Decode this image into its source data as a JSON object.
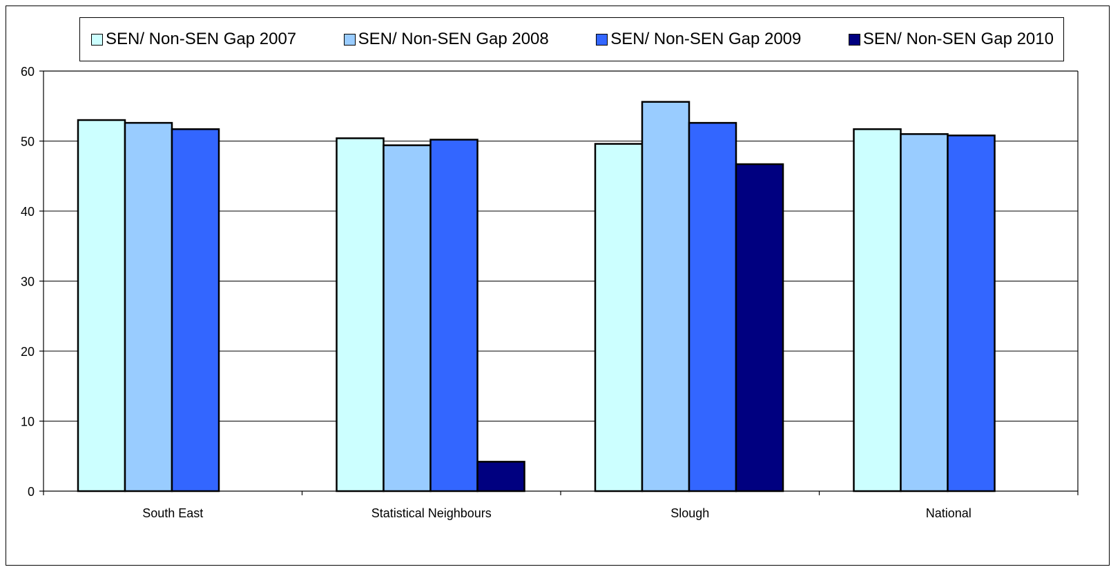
{
  "chart_data": {
    "type": "bar",
    "categories": [
      "South East",
      "Statistical Neighbours",
      "Slough",
      "National"
    ],
    "series": [
      {
        "name": "SEN/ Non-SEN Gap 2007",
        "color": "#ccffff",
        "values": [
          53.0,
          50.4,
          49.6,
          51.7
        ]
      },
      {
        "name": "SEN/ Non-SEN Gap 2008",
        "color": "#99ccff",
        "values": [
          52.6,
          49.4,
          55.6,
          51.0
        ]
      },
      {
        "name": "SEN/ Non-SEN Gap 2009",
        "color": "#3366ff",
        "values": [
          51.7,
          50.2,
          52.6,
          50.8
        ]
      },
      {
        "name": "SEN/ Non-SEN Gap 2010",
        "color": "#000080",
        "values": [
          null,
          4.2,
          46.7,
          null
        ]
      }
    ],
    "yticks": [
      "0",
      "10",
      "20",
      "30",
      "40",
      "50",
      "60"
    ],
    "ylim": [
      0,
      60
    ],
    "grid": true,
    "legend_position": "top"
  }
}
